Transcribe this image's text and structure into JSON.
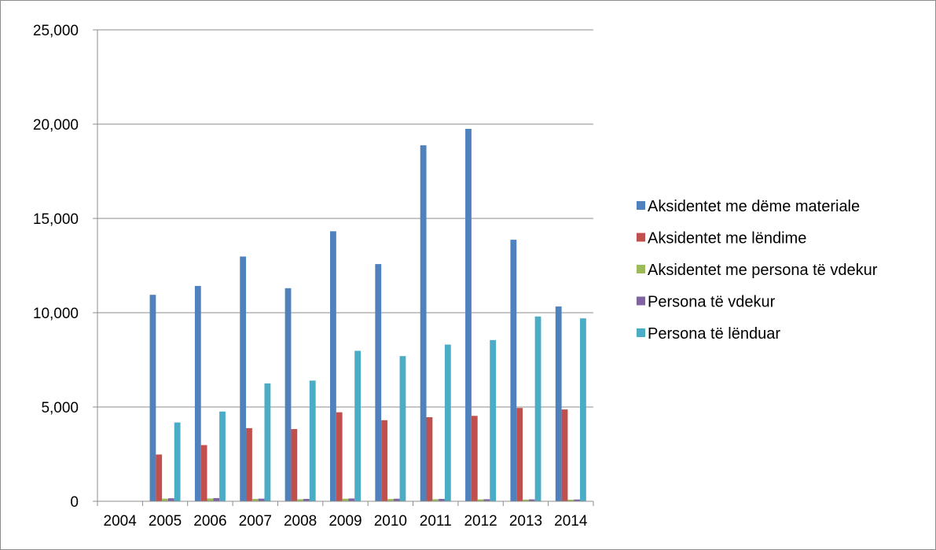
{
  "chart_data": {
    "type": "bar",
    "title": "",
    "xlabel": "",
    "ylabel": "",
    "ylim": [
      0,
      25000
    ],
    "yticks": [
      0,
      5000,
      10000,
      15000,
      20000,
      25000
    ],
    "ytick_labels": [
      "0",
      "5,000",
      "10,000",
      "15,000",
      "20,000",
      "25,000"
    ],
    "grid": true,
    "legend_position": "right",
    "categories": [
      "2004",
      "2005",
      "2006",
      "2007",
      "2008",
      "2009",
      "2010",
      "2011",
      "2012",
      "2013",
      "2014"
    ],
    "series": [
      {
        "name": "Aksidentet me dëme materiale",
        "color": "#4f81bd",
        "values": [
          null,
          10950,
          11420,
          12980,
          11300,
          14320,
          12580,
          18880,
          19750,
          13870,
          10330
        ]
      },
      {
        "name": "Aksidentet me lëndime",
        "color": "#c0504d",
        "values": [
          null,
          2480,
          2980,
          3880,
          3830,
          4720,
          4300,
          4460,
          4530,
          4950,
          4870
        ]
      },
      {
        "name": "Aksidentet me persona të vdekur",
        "color": "#9bbb59",
        "values": [
          null,
          140,
          150,
          125,
          110,
          135,
          120,
          110,
          100,
          90,
          85
        ]
      },
      {
        "name": "Persona të vdekur",
        "color": "#8064a2",
        "values": [
          null,
          160,
          170,
          140,
          125,
          150,
          135,
          125,
          110,
          100,
          95
        ]
      },
      {
        "name": "Persona të lënduar",
        "color": "#4bacc6",
        "values": [
          null,
          4180,
          4760,
          6250,
          6400,
          7980,
          7700,
          8310,
          8550,
          9800,
          9700
        ]
      }
    ]
  }
}
